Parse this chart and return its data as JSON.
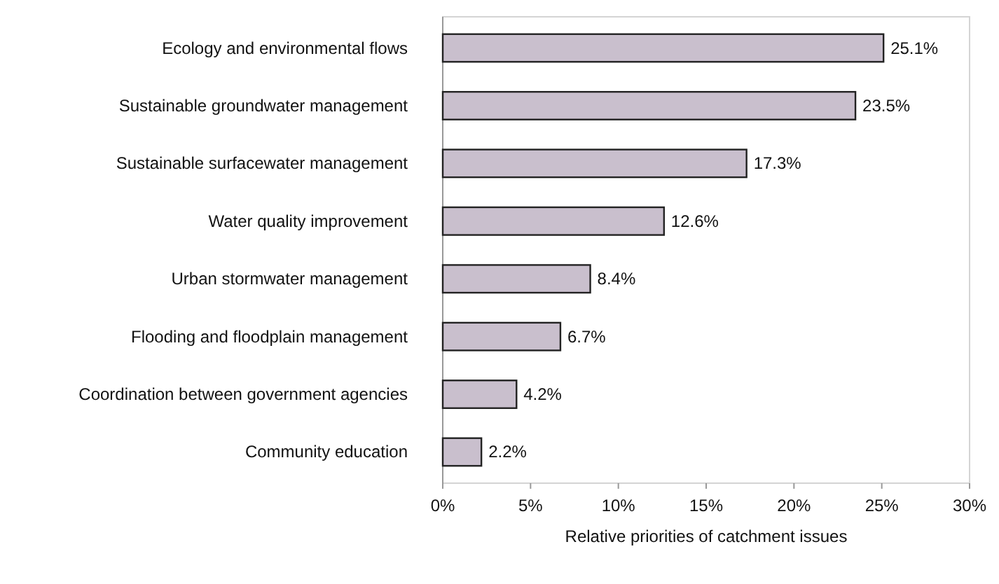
{
  "chart_data": {
    "type": "bar",
    "orientation": "horizontal",
    "xlabel": "Relative priorities of catchment issues",
    "categories": [
      "Ecology and environmental flows",
      "Sustainable groundwater management",
      "Sustainable surfacewater management",
      "Water quality improvement",
      "Urban stormwater management",
      "Flooding and floodplain management",
      "Coordination between government agencies",
      "Community education"
    ],
    "values": [
      25.1,
      23.5,
      17.3,
      12.6,
      8.4,
      6.7,
      4.2,
      2.2
    ],
    "value_labels": [
      "25.1%",
      "23.5%",
      "17.3%",
      "12.6%",
      "8.4%",
      "6.7%",
      "4.2%",
      "2.2%"
    ],
    "color": "#c9bfcd",
    "xlim": [
      0,
      30
    ],
    "xticks": [
      {
        "value": 0,
        "label": "0%"
      },
      {
        "value": 5,
        "label": "5%"
      },
      {
        "value": 10,
        "label": "10%"
      },
      {
        "value": 15,
        "label": "15%"
      },
      {
        "value": 20,
        "label": "20%"
      },
      {
        "value": 25,
        "label": "25%"
      },
      {
        "value": 30,
        "label": "30%"
      }
    ],
    "grid": false
  }
}
